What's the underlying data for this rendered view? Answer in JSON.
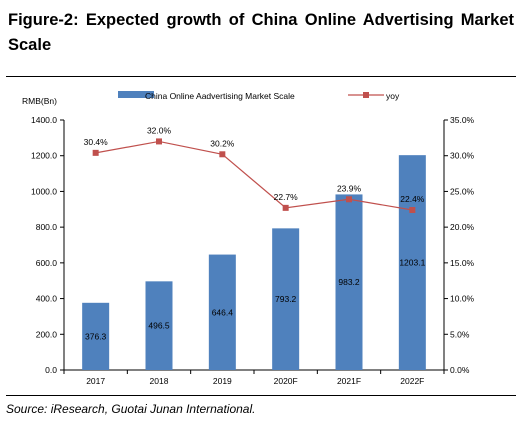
{
  "header": {
    "title": "Figure-2: Expected growth of China Online Advertising Market Scale"
  },
  "footer": {
    "source": "Source: iResearch, Guotai Junan International."
  },
  "colors": {
    "bar": "#4f81bd",
    "line": "#c0504d"
  },
  "chart_data": {
    "type": "bar",
    "categories": [
      "2017",
      "2018",
      "2019",
      "2020F",
      "2021F",
      "2022F"
    ],
    "series": [
      {
        "name": "China Online Aadvertising Market Scale",
        "type": "bar",
        "axis": "left",
        "values": [
          376.3,
          496.5,
          646.4,
          793.2,
          983.2,
          1203.1
        ],
        "labels": [
          "376.3",
          "496.5",
          "646.4",
          "793.2",
          "983.2",
          "1203.1"
        ]
      },
      {
        "name": "yoy",
        "type": "line",
        "axis": "right",
        "values": [
          30.4,
          32.0,
          30.2,
          22.7,
          23.9,
          22.4
        ],
        "labels": [
          "30.4%",
          "32.0%",
          "30.2%",
          "22.7%",
          "23.9%",
          "22.4%"
        ]
      }
    ],
    "ylabel": "RMB(Bn)",
    "ylim": [
      0,
      1400
    ],
    "yticks": [
      "0.0",
      "200.0",
      "400.0",
      "600.0",
      "800.0",
      "1000.0",
      "1200.0",
      "1400.0"
    ],
    "y2lim": [
      0,
      35
    ],
    "y2ticks": [
      "0.0%",
      "5.0%",
      "10.0%",
      "15.0%",
      "20.0%",
      "25.0%",
      "30.0%",
      "35.0%"
    ],
    "grid": false,
    "legend": "top"
  }
}
